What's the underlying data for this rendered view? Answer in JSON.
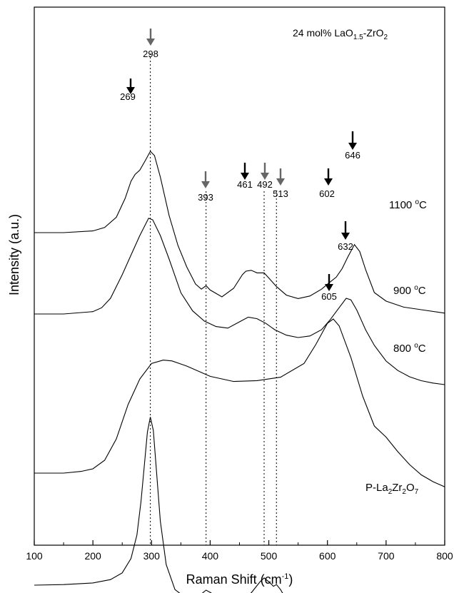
{
  "chart_data": {
    "type": "line",
    "title_html": "24 mol% LaO<tspan font-size='10' dy='4'>1.5</tspan><tspan dy='-4'>-ZrO</tspan><tspan font-size='10' dy='4'>2</tspan>",
    "title_text": "24 mol% LaO1.5-ZrO2",
    "xlabel": "Raman Shift (cm-1)",
    "ylabel": "Intensity (a.u.)",
    "xlim": [
      100,
      800
    ],
    "xticks": [
      100,
      200,
      300,
      400,
      500,
      600,
      700,
      800
    ],
    "y_ticks_shown": false,
    "series": [
      {
        "name": "1100 °C",
        "x": [
          100,
          150,
          200,
          220,
          240,
          255,
          265,
          272,
          280,
          290,
          298,
          305,
          315,
          330,
          345,
          360,
          375,
          385,
          393,
          400,
          420,
          440,
          455,
          461,
          470,
          480,
          492,
          500,
          513,
          530,
          550,
          570,
          590,
          602,
          615,
          625,
          635,
          646,
          655,
          665,
          680,
          700,
          730,
          760,
          800
        ],
        "y": [
          100,
          100,
          102,
          106,
          118,
          140,
          160,
          168,
          173,
          185,
          195,
          190,
          165,
          120,
          85,
          60,
          40,
          34,
          38,
          33,
          25,
          35,
          51,
          55,
          56,
          53,
          53,
          47,
          37,
          27,
          23,
          26,
          34,
          41,
          48,
          58,
          72,
          86,
          78,
          57,
          30,
          20,
          13,
          10,
          6
        ]
      },
      {
        "name": "900 °C",
        "x": [
          100,
          150,
          200,
          215,
          230,
          250,
          265,
          280,
          295,
          302,
          315,
          330,
          350,
          370,
          390,
          410,
          430,
          450,
          465,
          480,
          495,
          510,
          530,
          550,
          570,
          590,
          605,
          620,
          632,
          640,
          650,
          665,
          680,
          700,
          720,
          740,
          760,
          780,
          800
        ],
        "y": [
          100,
          100,
          103,
          108,
          120,
          150,
          175,
          200,
          222,
          220,
          200,
          170,
          127,
          104,
          91,
          84,
          82,
          90,
          96,
          94,
          88,
          80,
          73,
          70,
          72,
          80,
          93,
          108,
          120,
          118,
          105,
          80,
          60,
          40,
          28,
          20,
          15,
          12,
          10
        ]
      },
      {
        "name": "800 °C",
        "x": [
          100,
          150,
          180,
          200,
          220,
          240,
          260,
          280,
          300,
          320,
          335,
          360,
          400,
          440,
          480,
          520,
          560,
          580,
          600,
          610,
          620,
          640,
          660,
          680,
          700,
          720,
          740,
          760,
          780,
          800
        ],
        "y": [
          100,
          100,
          102,
          105,
          115,
          140,
          180,
          210,
          228,
          232,
          231,
          225,
          213,
          207,
          208,
          212,
          228,
          250,
          275,
          280,
          272,
          235,
          190,
          155,
          142,
          125,
          110,
          98,
          90,
          84
        ]
      },
      {
        "name": "P-La2Zr2O7",
        "name_html": "P-La<tspan font-size='10' dy='4'>2</tspan><tspan dy='-4'>Zr</tspan><tspan font-size='10' dy='4'>2</tspan><tspan dy='-4'>O</tspan><tspan font-size='10' dy='4'>7</tspan>",
        "x": [
          100,
          150,
          200,
          230,
          250,
          265,
          275,
          282,
          288,
          293,
          298,
          303,
          308,
          315,
          325,
          340,
          360,
          380,
          393,
          400,
          420,
          450,
          470,
          485,
          492,
          500,
          508,
          513,
          520,
          530,
          560,
          600,
          650,
          700,
          740,
          760,
          800
        ],
        "y": [
          100,
          101,
          104,
          110,
          122,
          148,
          190,
          250,
          318,
          375,
          402,
          378,
          310,
          215,
          137,
          92,
          76,
          80,
          91,
          87,
          74,
          74,
          86,
          106,
          113,
          106,
          98,
          101,
          92,
          74,
          68,
          66,
          64,
          64,
          67,
          64,
          63
        ]
      }
    ],
    "offset_note_removed": true,
    "peak_annotations": [
      {
        "x": 269,
        "label": "269",
        "arrow": "black"
      },
      {
        "x": 298,
        "label": "298",
        "arrow": "gray"
      },
      {
        "x": 393,
        "label": "393",
        "arrow": "gray"
      },
      {
        "x": 461,
        "label": "461",
        "arrow": "black"
      },
      {
        "x": 492,
        "label": "492",
        "arrow": "gray"
      },
      {
        "x": 513,
        "label": "513",
        "arrow": "gray"
      },
      {
        "x": 602,
        "label": "602",
        "arrow": "black"
      },
      {
        "x": 646,
        "label": "646",
        "arrow": "black"
      },
      {
        "x": 632,
        "label": "632",
        "arrow": "black"
      },
      {
        "x": 605,
        "label": "605",
        "arrow": "black"
      }
    ],
    "reference_lines_x": [
      298,
      393,
      492,
      513
    ],
    "colors": {
      "black_arrow": "#000000",
      "gray_arrow": "#666666",
      "line": "#000000"
    }
  }
}
